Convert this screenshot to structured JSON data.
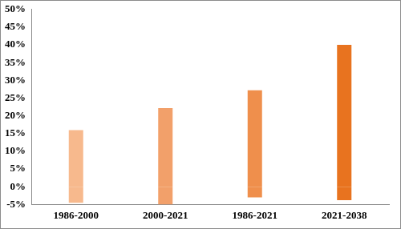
{
  "chart_data": {
    "type": "bar",
    "stacked": true,
    "grid": false,
    "categories": [
      "1986-2000",
      "2000-2021",
      "1986-2021",
      "2021-2038"
    ],
    "series": [
      {
        "colors": [
          "#f7b98d",
          "#f2a06a",
          "#ef8f4c",
          "#e8731f"
        ],
        "values": [
          16,
          22.2,
          27.2,
          40
        ]
      },
      {
        "colors": [
          "#f7b98d",
          "#f2a06a",
          "#ef8f4c",
          "#e8731f"
        ],
        "values": [
          -4.5,
          -5,
          -3,
          -3.8
        ]
      }
    ],
    "ylim": [
      -5,
      50
    ],
    "yticks": [
      {
        "value": -5,
        "label": "-5%"
      },
      {
        "value": 0,
        "label": "0%"
      },
      {
        "value": 5,
        "label": "5%"
      },
      {
        "value": 10,
        "label": "10%"
      },
      {
        "value": 15,
        "label": "15%"
      },
      {
        "value": 20,
        "label": "20%"
      },
      {
        "value": 25,
        "label": "25%"
      },
      {
        "value": 30,
        "label": "30%"
      },
      {
        "value": 35,
        "label": "35%"
      },
      {
        "value": 40,
        "label": "40%"
      },
      {
        "value": 45,
        "label": "45%"
      },
      {
        "value": 50,
        "label": "50%"
      }
    ]
  }
}
